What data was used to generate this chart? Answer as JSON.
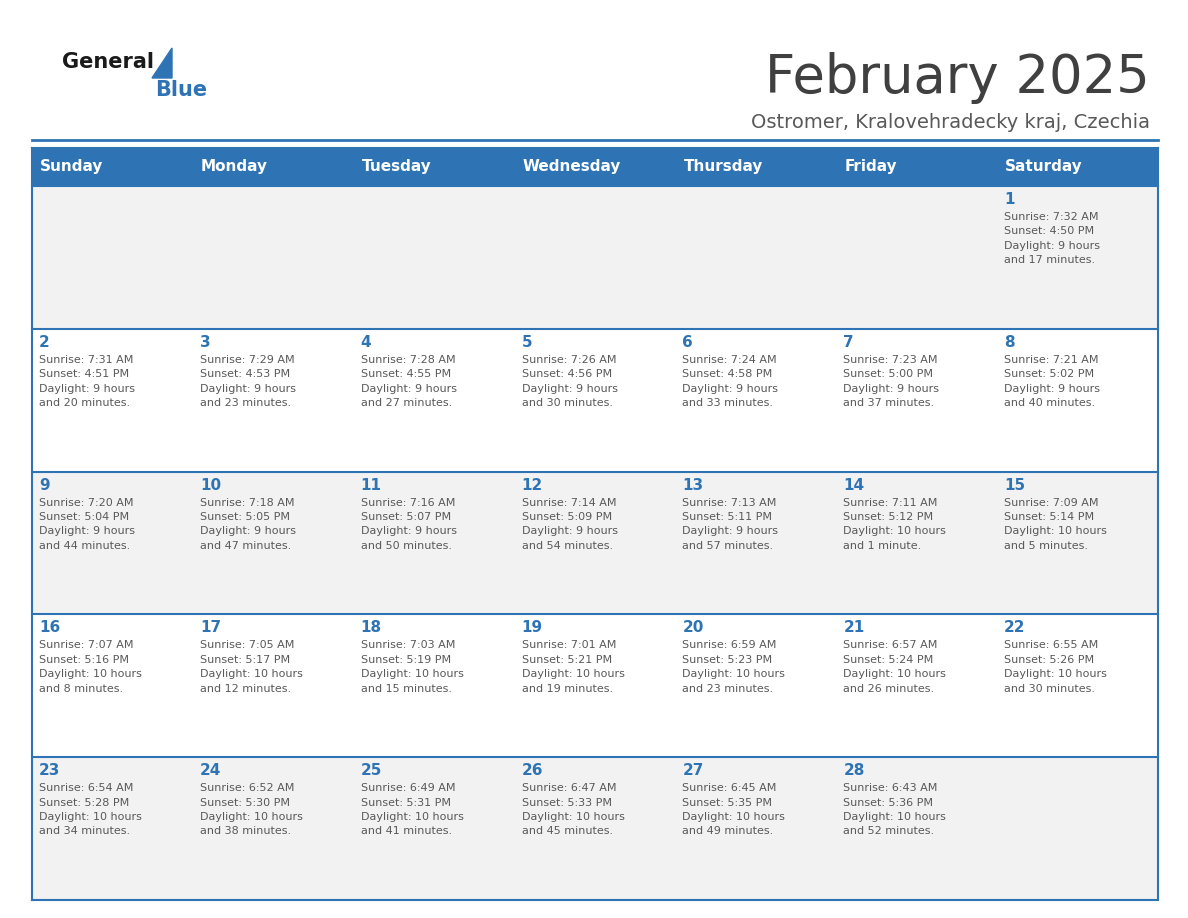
{
  "title": "February 2025",
  "subtitle": "Ostromer, Kralovehradecky kraj, Czechia",
  "header_bg": "#2E74B5",
  "header_text_color": "#FFFFFF",
  "row_bg_light": "#F2F2F2",
  "row_bg_white": "#FFFFFF",
  "cell_border_color": "#2E74B5",
  "day_headers": [
    "Sunday",
    "Monday",
    "Tuesday",
    "Wednesday",
    "Thursday",
    "Friday",
    "Saturday"
  ],
  "calendar_data": [
    [
      {
        "day": "",
        "info": ""
      },
      {
        "day": "",
        "info": ""
      },
      {
        "day": "",
        "info": ""
      },
      {
        "day": "",
        "info": ""
      },
      {
        "day": "",
        "info": ""
      },
      {
        "day": "",
        "info": ""
      },
      {
        "day": "1",
        "info": "Sunrise: 7:32 AM\nSunset: 4:50 PM\nDaylight: 9 hours\nand 17 minutes."
      }
    ],
    [
      {
        "day": "2",
        "info": "Sunrise: 7:31 AM\nSunset: 4:51 PM\nDaylight: 9 hours\nand 20 minutes."
      },
      {
        "day": "3",
        "info": "Sunrise: 7:29 AM\nSunset: 4:53 PM\nDaylight: 9 hours\nand 23 minutes."
      },
      {
        "day": "4",
        "info": "Sunrise: 7:28 AM\nSunset: 4:55 PM\nDaylight: 9 hours\nand 27 minutes."
      },
      {
        "day": "5",
        "info": "Sunrise: 7:26 AM\nSunset: 4:56 PM\nDaylight: 9 hours\nand 30 minutes."
      },
      {
        "day": "6",
        "info": "Sunrise: 7:24 AM\nSunset: 4:58 PM\nDaylight: 9 hours\nand 33 minutes."
      },
      {
        "day": "7",
        "info": "Sunrise: 7:23 AM\nSunset: 5:00 PM\nDaylight: 9 hours\nand 37 minutes."
      },
      {
        "day": "8",
        "info": "Sunrise: 7:21 AM\nSunset: 5:02 PM\nDaylight: 9 hours\nand 40 minutes."
      }
    ],
    [
      {
        "day": "9",
        "info": "Sunrise: 7:20 AM\nSunset: 5:04 PM\nDaylight: 9 hours\nand 44 minutes."
      },
      {
        "day": "10",
        "info": "Sunrise: 7:18 AM\nSunset: 5:05 PM\nDaylight: 9 hours\nand 47 minutes."
      },
      {
        "day": "11",
        "info": "Sunrise: 7:16 AM\nSunset: 5:07 PM\nDaylight: 9 hours\nand 50 minutes."
      },
      {
        "day": "12",
        "info": "Sunrise: 7:14 AM\nSunset: 5:09 PM\nDaylight: 9 hours\nand 54 minutes."
      },
      {
        "day": "13",
        "info": "Sunrise: 7:13 AM\nSunset: 5:11 PM\nDaylight: 9 hours\nand 57 minutes."
      },
      {
        "day": "14",
        "info": "Sunrise: 7:11 AM\nSunset: 5:12 PM\nDaylight: 10 hours\nand 1 minute."
      },
      {
        "day": "15",
        "info": "Sunrise: 7:09 AM\nSunset: 5:14 PM\nDaylight: 10 hours\nand 5 minutes."
      }
    ],
    [
      {
        "day": "16",
        "info": "Sunrise: 7:07 AM\nSunset: 5:16 PM\nDaylight: 10 hours\nand 8 minutes."
      },
      {
        "day": "17",
        "info": "Sunrise: 7:05 AM\nSunset: 5:17 PM\nDaylight: 10 hours\nand 12 minutes."
      },
      {
        "day": "18",
        "info": "Sunrise: 7:03 AM\nSunset: 5:19 PM\nDaylight: 10 hours\nand 15 minutes."
      },
      {
        "day": "19",
        "info": "Sunrise: 7:01 AM\nSunset: 5:21 PM\nDaylight: 10 hours\nand 19 minutes."
      },
      {
        "day": "20",
        "info": "Sunrise: 6:59 AM\nSunset: 5:23 PM\nDaylight: 10 hours\nand 23 minutes."
      },
      {
        "day": "21",
        "info": "Sunrise: 6:57 AM\nSunset: 5:24 PM\nDaylight: 10 hours\nand 26 minutes."
      },
      {
        "day": "22",
        "info": "Sunrise: 6:55 AM\nSunset: 5:26 PM\nDaylight: 10 hours\nand 30 minutes."
      }
    ],
    [
      {
        "day": "23",
        "info": "Sunrise: 6:54 AM\nSunset: 5:28 PM\nDaylight: 10 hours\nand 34 minutes."
      },
      {
        "day": "24",
        "info": "Sunrise: 6:52 AM\nSunset: 5:30 PM\nDaylight: 10 hours\nand 38 minutes."
      },
      {
        "day": "25",
        "info": "Sunrise: 6:49 AM\nSunset: 5:31 PM\nDaylight: 10 hours\nand 41 minutes."
      },
      {
        "day": "26",
        "info": "Sunrise: 6:47 AM\nSunset: 5:33 PM\nDaylight: 10 hours\nand 45 minutes."
      },
      {
        "day": "27",
        "info": "Sunrise: 6:45 AM\nSunset: 5:35 PM\nDaylight: 10 hours\nand 49 minutes."
      },
      {
        "day": "28",
        "info": "Sunrise: 6:43 AM\nSunset: 5:36 PM\nDaylight: 10 hours\nand 52 minutes."
      },
      {
        "day": "",
        "info": ""
      }
    ]
  ],
  "title_color": "#404040",
  "subtitle_color": "#595959",
  "day_number_color": "#2E74B5",
  "info_text_color": "#595959",
  "logo_general_color": "#1a1a1a",
  "logo_blue_color": "#2E74B5",
  "logo_triangle_color": "#2E74B5"
}
